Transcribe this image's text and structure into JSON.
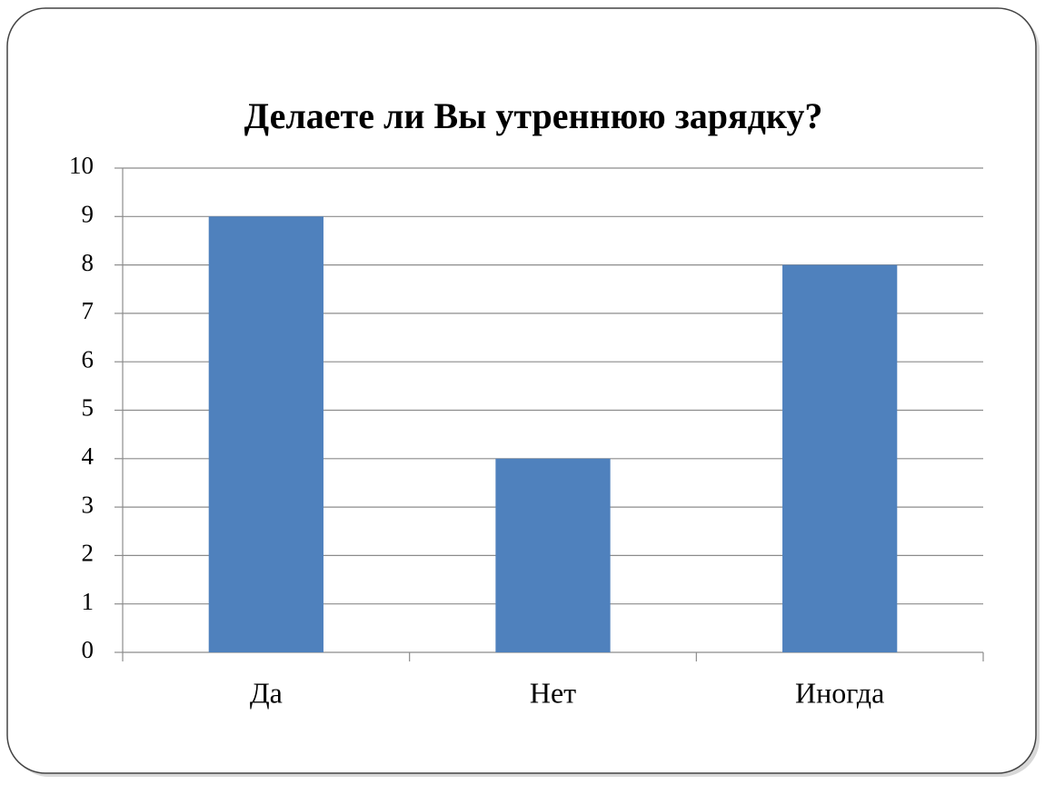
{
  "chart_data": {
    "type": "bar",
    "title": "Делаете ли Вы утреннюю зарядку?",
    "categories": [
      "Да",
      "Нет",
      "Иногда"
    ],
    "values": [
      9,
      4,
      8
    ],
    "color": "#4f81bd",
    "ylim": [
      0,
      10
    ],
    "yticks": [
      0,
      1,
      2,
      3,
      4,
      5,
      6,
      7,
      8,
      9,
      10
    ],
    "grid": true
  }
}
